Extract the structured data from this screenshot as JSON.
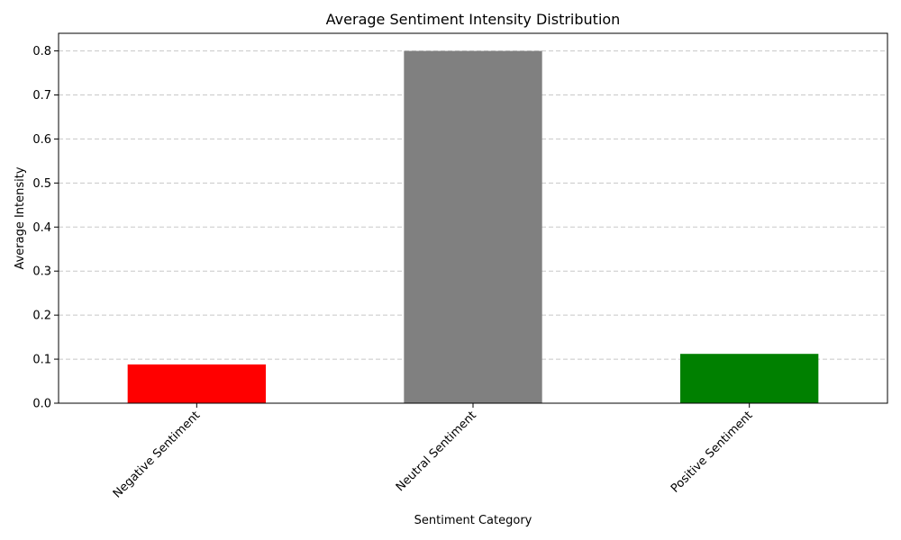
{
  "chart_data": {
    "type": "bar",
    "title": "Average Sentiment Intensity Distribution",
    "xlabel": "Sentiment Category",
    "ylabel": "Average Intensity",
    "categories": [
      "Negative Sentiment",
      "Neutral Sentiment",
      "Positive Sentiment"
    ],
    "values": [
      0.088,
      0.8,
      0.112
    ],
    "colors": [
      "#ff0000",
      "#808080",
      "#008000"
    ],
    "ylim": [
      0,
      0.84
    ],
    "yticks": [
      0.0,
      0.1,
      0.2,
      0.3,
      0.4,
      0.5,
      0.6,
      0.7,
      0.8
    ],
    "ytick_labels": [
      "0.0",
      "0.1",
      "0.2",
      "0.3",
      "0.4",
      "0.5",
      "0.6",
      "0.7",
      "0.8"
    ],
    "grid": "y-dashed",
    "xtick_rotation": 45
  }
}
